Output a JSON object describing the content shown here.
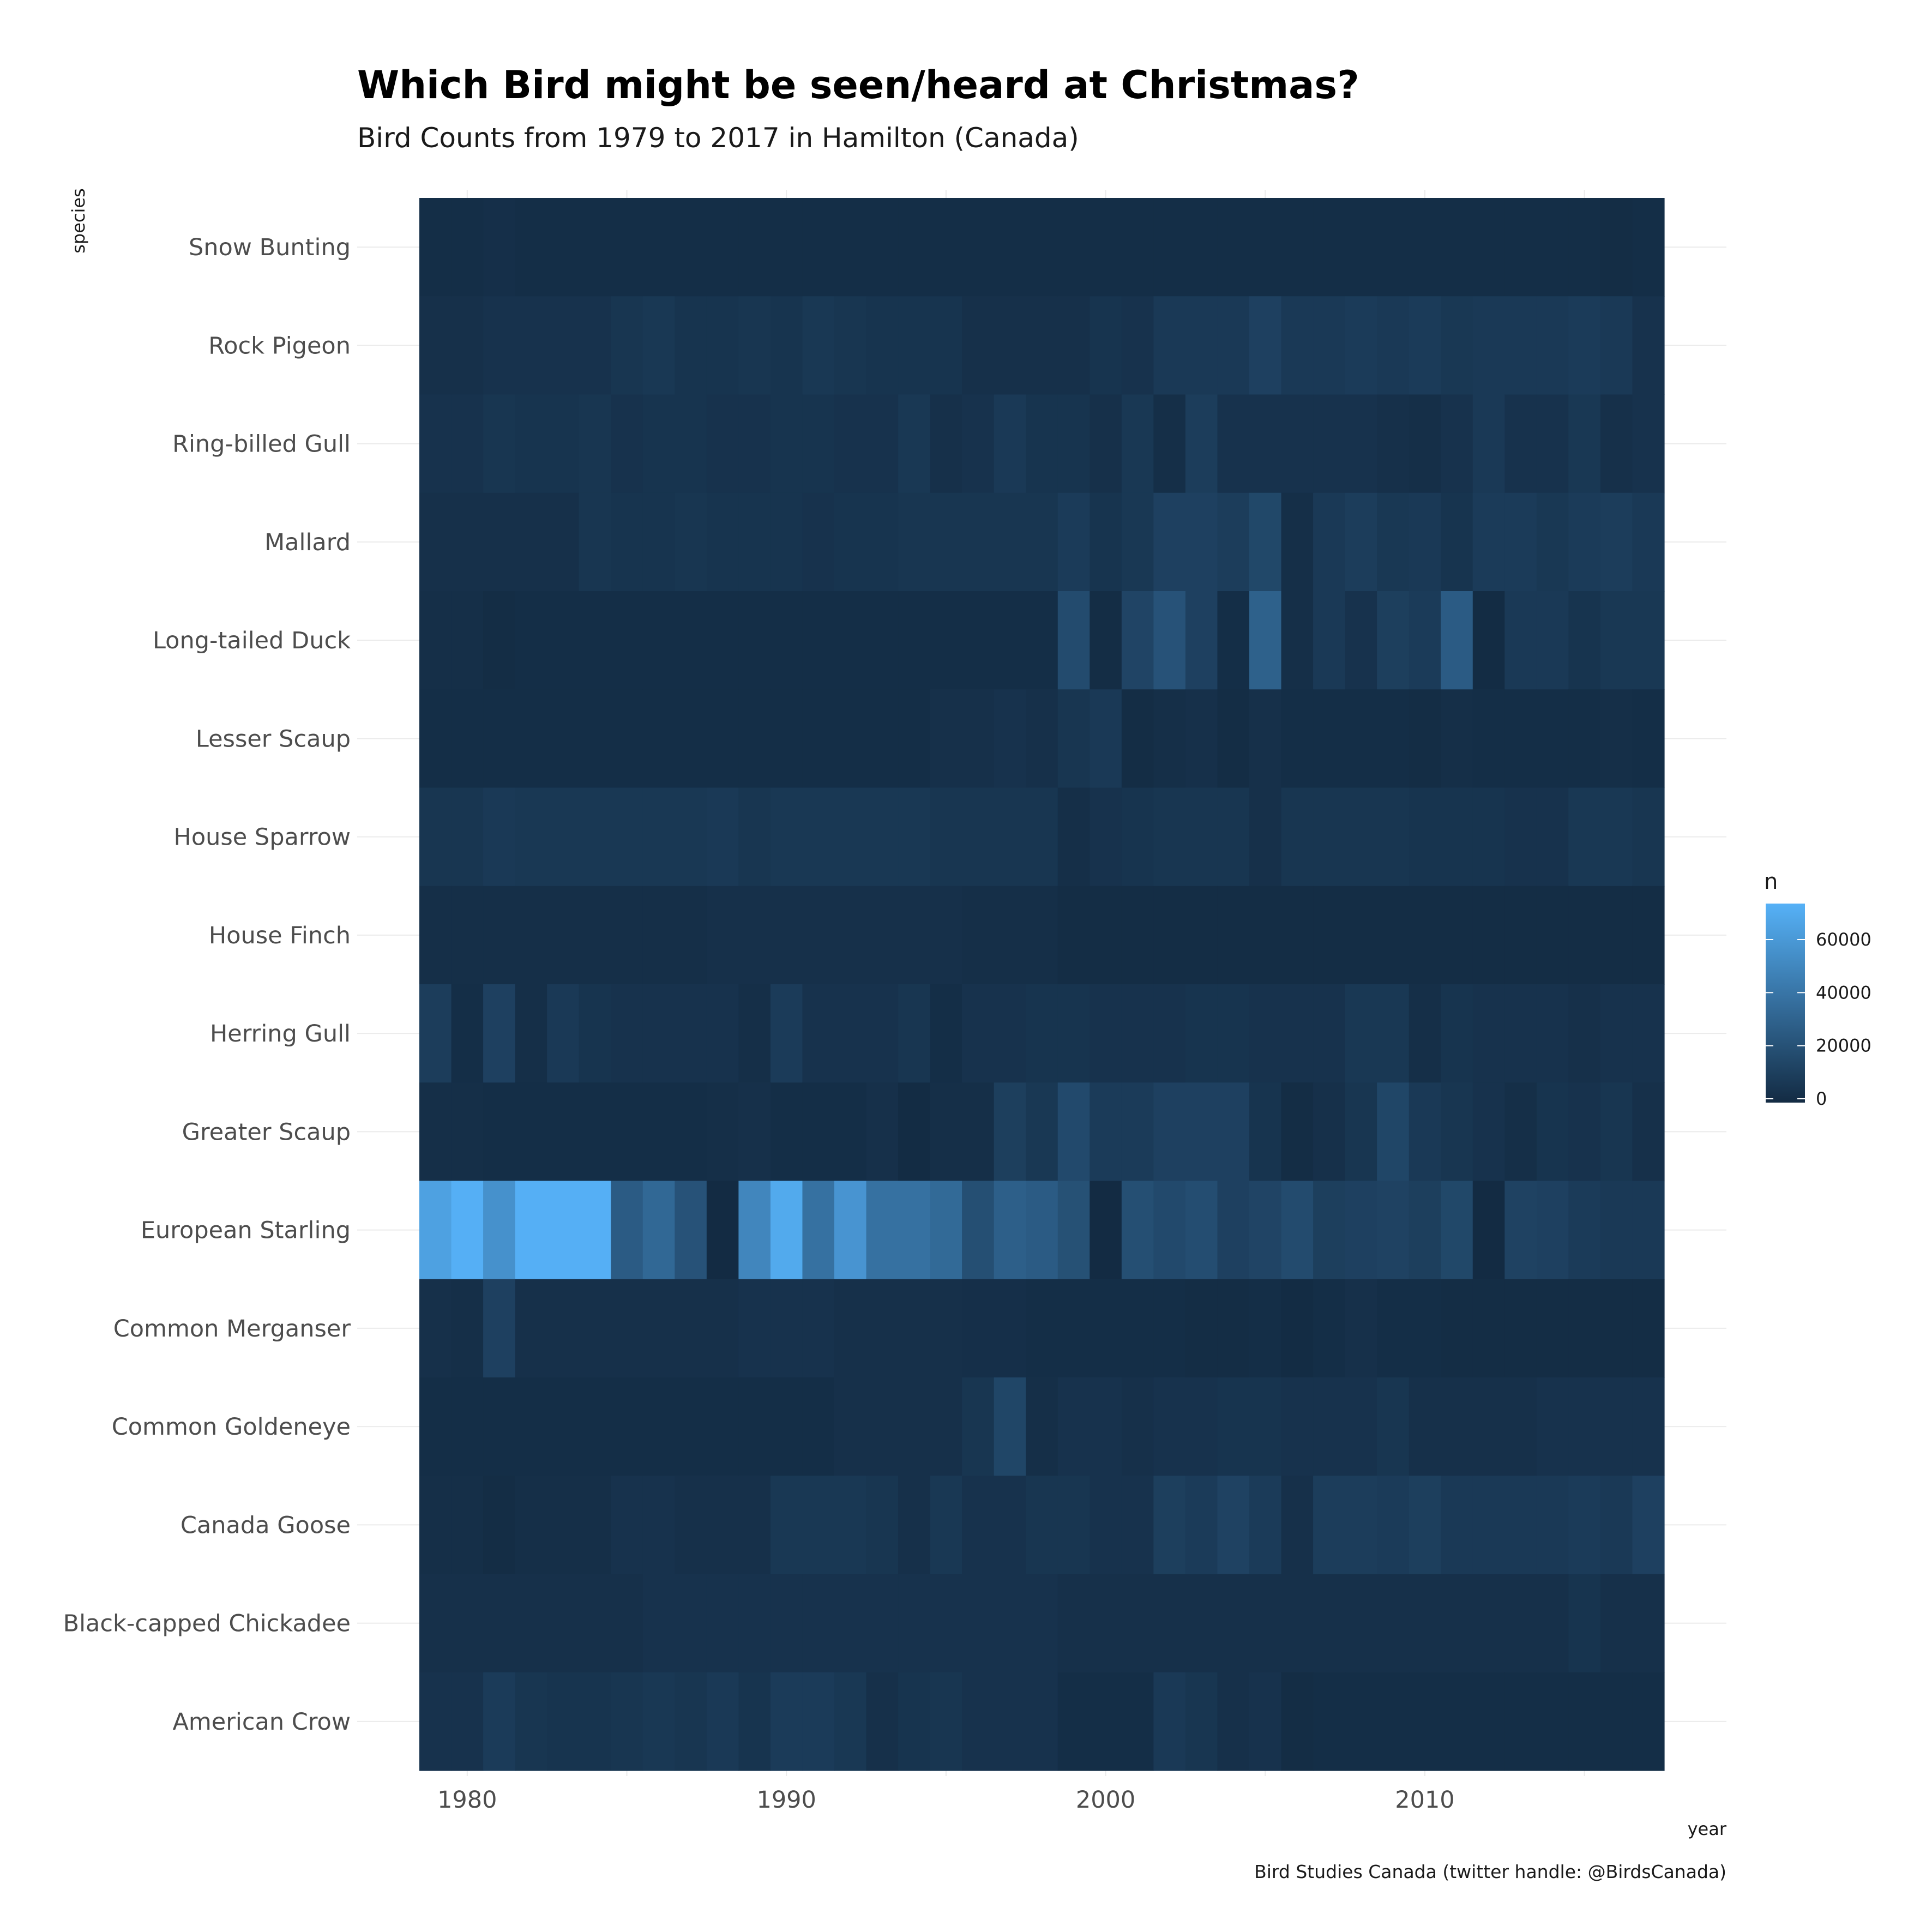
{
  "chart_data": {
    "type": "heatmap",
    "title": "Which Bird might be seen/heard at Christmas?",
    "subtitle": "Bird Counts from 1979 to 2017 in Hamilton (Canada)",
    "caption": "Bird Studies Canada (twitter handle: @BirdsCanada)",
    "xlabel": "year",
    "ylabel": "species",
    "x_ticks": [
      1980,
      1990,
      2000,
      2010
    ],
    "xlim": [
      1978.5,
      2017.5
    ],
    "legend": {
      "title": "n",
      "ticks": [
        0,
        20000,
        40000,
        60000
      ],
      "range": [
        0,
        75000
      ],
      "low_color": "#132B43",
      "high_color": "#56B1F7",
      "position": "right"
    },
    "x": [
      1979,
      1980,
      1981,
      1982,
      1983,
      1984,
      1985,
      1986,
      1987,
      1988,
      1989,
      1990,
      1991,
      1992,
      1993,
      1994,
      1995,
      1996,
      1997,
      1998,
      1999,
      2000,
      2001,
      2002,
      2003,
      2004,
      2005,
      2006,
      2007,
      2008,
      2009,
      2010,
      2011,
      2012,
      2013,
      2014,
      2015,
      2016,
      2017
    ],
    "species": [
      "Snow Bunting",
      "Rock Pigeon",
      "Ring-billed Gull",
      "Mallard",
      "Long-tailed Duck",
      "Lesser Scaup",
      "House Sparrow",
      "House Finch",
      "Herring Gull",
      "Greater Scaup",
      "European Starling",
      "Common Merganser",
      "Common Goldeneye",
      "Canada Goose",
      "Black-capped Chickadee",
      "American Crow"
    ],
    "values": [
      [
        1500,
        1500,
        2500,
        1500,
        1500,
        1500,
        1500,
        1500,
        1500,
        1500,
        1500,
        1500,
        1500,
        1500,
        1500,
        1500,
        1500,
        1500,
        1500,
        1500,
        1500,
        1500,
        1500,
        1500,
        1500,
        1500,
        1500,
        1500,
        1500,
        1500,
        1500,
        1500,
        1500,
        1500,
        1500,
        1500,
        1500,
        1000,
        1500
      ],
      [
        3000,
        3000,
        4000,
        4000,
        4000,
        4000,
        6000,
        7000,
        5000,
        5000,
        6000,
        5000,
        7000,
        6000,
        5000,
        5000,
        5000,
        3000,
        3000,
        3000,
        3000,
        5000,
        4000,
        8000,
        8000,
        8000,
        12000,
        8000,
        8000,
        9000,
        8000,
        9000,
        7000,
        8000,
        8000,
        8000,
        9000,
        8000,
        4000
      ],
      [
        4000,
        4000,
        6000,
        5000,
        5000,
        6000,
        4000,
        5000,
        5000,
        4000,
        4000,
        5000,
        5000,
        4000,
        4000,
        7000,
        3000,
        4000,
        8000,
        5000,
        5000,
        3000,
        7000,
        2000,
        10000,
        4000,
        4000,
        4000,
        4000,
        4000,
        3000,
        2000,
        4000,
        8000,
        4000,
        4000,
        7000,
        3000,
        4000
      ],
      [
        3000,
        3000,
        3000,
        3000,
        3000,
        6000,
        5000,
        5000,
        6000,
        5000,
        5000,
        5000,
        4000,
        5000,
        5000,
        6000,
        6000,
        6000,
        6000,
        6000,
        9000,
        5000,
        7000,
        12000,
        12000,
        10000,
        16000,
        2000,
        8000,
        10000,
        7000,
        8000,
        5000,
        9000,
        9000,
        7000,
        9000,
        10000,
        8000
      ],
      [
        2000,
        2000,
        1000,
        1500,
        1500,
        1500,
        1500,
        1500,
        1500,
        1500,
        1500,
        1500,
        1500,
        1500,
        1500,
        1500,
        1500,
        1500,
        1500,
        1500,
        18000,
        1000,
        14000,
        22000,
        12000,
        1500,
        30000,
        2000,
        8000,
        4000,
        11000,
        9000,
        27000,
        500,
        8000,
        8000,
        5000,
        7000,
        7000
      ],
      [
        1500,
        1500,
        1500,
        1500,
        1500,
        1500,
        1500,
        1500,
        1500,
        1500,
        1500,
        1500,
        1500,
        1500,
        1500,
        1500,
        3000,
        3000,
        4000,
        3000,
        6000,
        8000,
        1000,
        2000,
        3000,
        1000,
        3000,
        1500,
        1500,
        1500,
        1500,
        1000,
        2000,
        1500,
        1500,
        1500,
        1500,
        2000,
        1500
      ],
      [
        6000,
        6000,
        8000,
        7000,
        7000,
        7000,
        7000,
        7000,
        7000,
        8000,
        6000,
        7000,
        7000,
        7000,
        7000,
        7000,
        6000,
        6000,
        6000,
        6000,
        2000,
        4000,
        5000,
        6000,
        6000,
        6000,
        3000,
        6000,
        6000,
        6000,
        6000,
        5000,
        5000,
        5000,
        4000,
        4000,
        7000,
        7000,
        6000
      ],
      [
        2000,
        2000,
        2000,
        2000,
        2000,
        2000,
        2000,
        2000,
        2000,
        3000,
        3000,
        3000,
        3000,
        3000,
        3000,
        3000,
        3000,
        2000,
        2000,
        2000,
        1000,
        1000,
        1000,
        1000,
        1000,
        1000,
        1000,
        1000,
        1000,
        1000,
        1000,
        1000,
        1000,
        1000,
        1000,
        1000,
        1000,
        1000,
        1000
      ],
      [
        10000,
        1500,
        12000,
        2000,
        8000,
        5000,
        4000,
        4000,
        4000,
        4000,
        2000,
        9000,
        4000,
        4000,
        4000,
        6000,
        1500,
        4000,
        4000,
        5000,
        5000,
        4000,
        4000,
        4000,
        5000,
        5000,
        4000,
        4000,
        4000,
        7000,
        7000,
        2000,
        5000,
        4000,
        4000,
        4000,
        3000,
        4000,
        4000
      ],
      [
        2000,
        2000,
        1500,
        1500,
        1500,
        1500,
        1500,
        1500,
        1500,
        2000,
        3000,
        1500,
        1500,
        1500,
        3000,
        500,
        2000,
        2000,
        11000,
        7000,
        17000,
        9000,
        9000,
        12000,
        12000,
        12000,
        5000,
        1000,
        3000,
        6000,
        15000,
        8000,
        6000,
        4000,
        2000,
        5000,
        4000,
        6000,
        3000
      ],
      [
        66000,
        74000,
        57000,
        74000,
        74000,
        74000,
        27000,
        34000,
        22000,
        0,
        51000,
        71000,
        39000,
        59000,
        39000,
        39000,
        35000,
        20000,
        29000,
        27000,
        21000,
        0,
        20000,
        17000,
        19000,
        12000,
        14000,
        18000,
        11000,
        12000,
        13000,
        11000,
        16000,
        0,
        13000,
        12000,
        9000,
        8000,
        8000
      ],
      [
        3000,
        2000,
        12000,
        3000,
        3000,
        3000,
        3000,
        3000,
        3000,
        3000,
        4000,
        4000,
        4000,
        3000,
        3000,
        3000,
        3000,
        2500,
        2500,
        1500,
        1500,
        1500,
        1500,
        1500,
        1000,
        1000,
        1500,
        500,
        1500,
        3000,
        1500,
        1500,
        1000,
        1000,
        1000,
        1000,
        1000,
        1000,
        1000
      ],
      [
        1500,
        1500,
        1500,
        1500,
        1500,
        1500,
        1500,
        1500,
        1500,
        1500,
        1500,
        1500,
        1500,
        3000,
        3000,
        3000,
        3000,
        6000,
        15000,
        2000,
        4000,
        4000,
        3000,
        4000,
        4000,
        5000,
        5000,
        4000,
        4000,
        4000,
        6000,
        3000,
        3000,
        3000,
        3000,
        4000,
        4000,
        4000,
        4000
      ],
      [
        2000,
        2000,
        1000,
        2000,
        2000,
        2000,
        4000,
        4000,
        3000,
        3000,
        3000,
        7000,
        7000,
        7000,
        6000,
        3000,
        7000,
        4000,
        4000,
        6000,
        6000,
        4000,
        4000,
        11000,
        9000,
        13000,
        9000,
        3000,
        10000,
        10000,
        9000,
        11000,
        8000,
        8000,
        8000,
        8000,
        9000,
        8000,
        12000
      ],
      [
        3000,
        3000,
        3000,
        3000,
        3000,
        3000,
        3000,
        4000,
        4000,
        4000,
        4000,
        4000,
        4000,
        4000,
        4000,
        4000,
        4000,
        4000,
        4000,
        4000,
        3000,
        3000,
        3000,
        3000,
        3000,
        3000,
        3000,
        3000,
        3000,
        3000,
        3000,
        3000,
        3000,
        3000,
        3000,
        3000,
        5000,
        3000,
        3000
      ],
      [
        4000,
        4000,
        9000,
        6000,
        5000,
        5000,
        6000,
        7000,
        6000,
        8000,
        5000,
        9000,
        9000,
        7000,
        3000,
        5000,
        6000,
        4000,
        4000,
        4000,
        1500,
        1500,
        1500,
        8000,
        6000,
        3000,
        4000,
        1000,
        1500,
        1500,
        1500,
        1500,
        1500,
        1500,
        1500,
        1500,
        1500,
        1500,
        1500
      ]
    ]
  }
}
